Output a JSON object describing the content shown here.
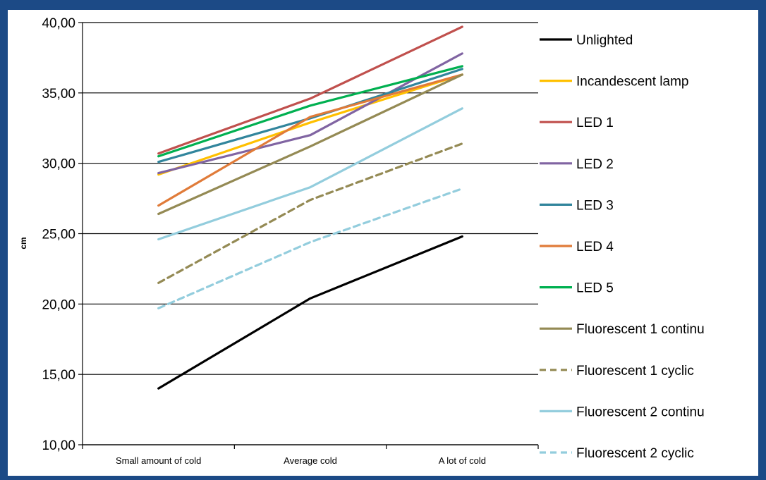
{
  "chart_data": {
    "type": "line",
    "title": "",
    "xlabel": "",
    "ylabel": "cm",
    "ylim": [
      10,
      40
    ],
    "yticks": [
      "10,00",
      "15,00",
      "20,00",
      "25,00",
      "30,00",
      "35,00",
      "40,00"
    ],
    "ytick_values": [
      10,
      15,
      20,
      25,
      30,
      35,
      40
    ],
    "grid": true,
    "legend_position": "right",
    "categories": [
      "Small amount of cold",
      "Average cold",
      "A lot of cold"
    ],
    "series": [
      {
        "name": "Unlighted",
        "values": [
          14.0,
          20.4,
          24.8
        ],
        "color": "#000000",
        "dashed": false
      },
      {
        "name": "Incandescent lamp",
        "values": [
          29.2,
          32.9,
          36.3
        ],
        "color": "#ffc000",
        "dashed": false
      },
      {
        "name": "LED 1",
        "values": [
          30.7,
          34.6,
          39.7
        ],
        "color": "#c0504d",
        "dashed": false
      },
      {
        "name": "LED 2",
        "values": [
          29.3,
          32.0,
          37.8
        ],
        "color": "#8064a2",
        "dashed": false
      },
      {
        "name": "LED 3",
        "values": [
          30.1,
          33.2,
          36.7
        ],
        "color": "#31859c",
        "dashed": false
      },
      {
        "name": "LED 4",
        "values": [
          27.0,
          33.3,
          36.3
        ],
        "color": "#e07b39",
        "dashed": false
      },
      {
        "name": "LED 5",
        "values": [
          30.5,
          34.1,
          36.9
        ],
        "color": "#00b050",
        "dashed": false
      },
      {
        "name": "Fluorescent 1 continu",
        "values": [
          26.4,
          31.2,
          36.3
        ],
        "color": "#948a54",
        "dashed": false
      },
      {
        "name": "Fluorescent 1 cyclic",
        "values": [
          21.5,
          27.4,
          31.4
        ],
        "color": "#948a54",
        "dashed": true
      },
      {
        "name": "Fluorescent 2 continu",
        "values": [
          24.6,
          28.3,
          33.9
        ],
        "color": "#93cddd",
        "dashed": false
      },
      {
        "name": "Fluorescent 2 cyclic",
        "values": [
          19.7,
          24.4,
          28.2
        ],
        "color": "#93cddd",
        "dashed": true
      }
    ]
  }
}
